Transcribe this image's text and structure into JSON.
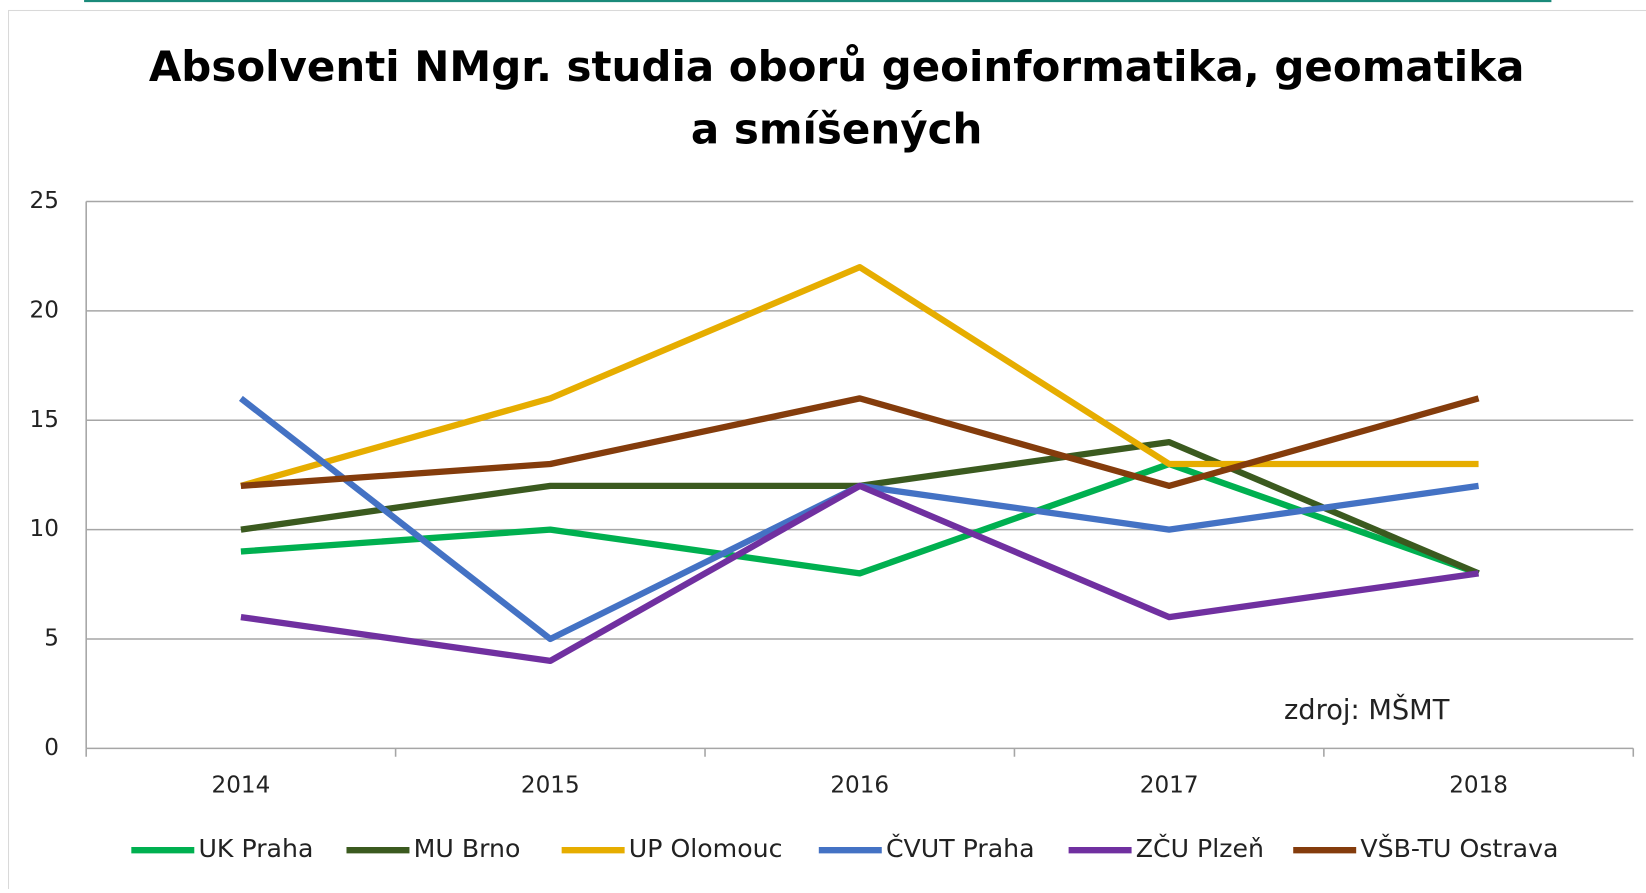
{
  "chart_data": {
    "type": "line",
    "title": [
      "Absolventi NMgr. studia oborů geoinformatika, geomatika",
      "a smíšených"
    ],
    "annotation": "zdroj: MŠMT",
    "categories": [
      "2014",
      "2015",
      "2016",
      "2017",
      "2018"
    ],
    "series": [
      {
        "name": "UK Praha",
        "color": "#00b050",
        "values": [
          9,
          10,
          8,
          13,
          8
        ]
      },
      {
        "name": "MU Brno",
        "color": "#3b5a1f",
        "values": [
          10,
          12,
          12,
          14,
          8
        ]
      },
      {
        "name": "UP Olomouc",
        "color": "#e6ad00",
        "values": [
          12,
          16,
          22,
          13,
          13
        ]
      },
      {
        "name": "ČVUT Praha",
        "color": "#4472c4",
        "values": [
          16,
          5,
          12,
          10,
          12
        ]
      },
      {
        "name": "ZČU Plzeň",
        "color": "#7030a0",
        "values": [
          6,
          4,
          12,
          6,
          8
        ]
      },
      {
        "name": "VŠB-TU Ostrava",
        "color": "#843c0c",
        "values": [
          12,
          13,
          16,
          12,
          16
        ]
      }
    ],
    "ylim": [
      0,
      25
    ],
    "yticks": [
      0,
      5,
      10,
      15,
      20,
      25
    ],
    "grid": true,
    "legend": "bottom"
  }
}
